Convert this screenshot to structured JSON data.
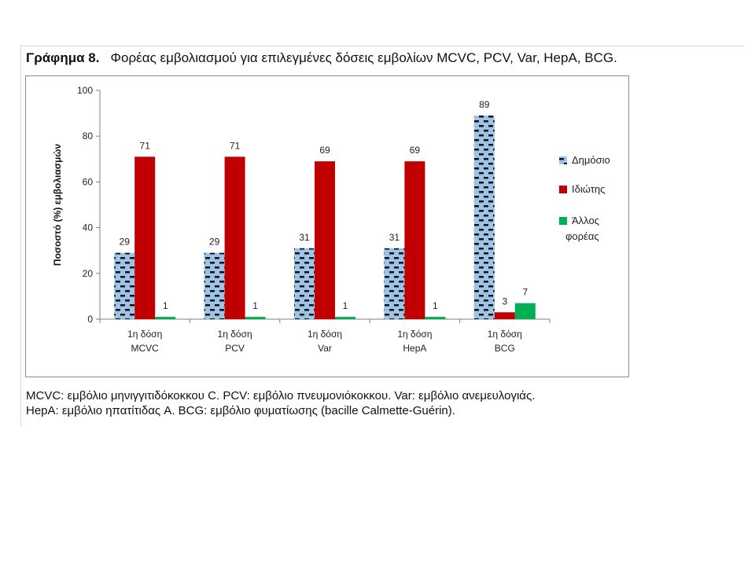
{
  "figure": {
    "label": "Γράφημα 8.",
    "title": "Φορέας εμβολιασμού για επιλεγμένες δόσεις εμβολίων MCVC, PCV, Var, HepA, BCG."
  },
  "caption": {
    "line1": "MCVC: εμβόλιο μηνιγγιτιδόκοκκου C. PCV: εμβόλιο πνευμονιόκοκκου. Var: εμβόλιο ανεμευλογιάς.",
    "line2": "HepA: εμβόλιο ηπατίτιδας A. BCG: εμβόλιο φυματίωσης (bacille Calmette-Guérin)."
  },
  "chart_data": {
    "type": "bar",
    "title": "",
    "xlabel": "",
    "ylabel": "Ποσοστό (%) εμβολιασμών",
    "ylim": [
      0,
      100
    ],
    "yticks": [
      0,
      20,
      40,
      60,
      80,
      100
    ],
    "grid": false,
    "legend_position": "right",
    "categories": [
      [
        "1η δόση",
        "MCVC"
      ],
      [
        "1η δόση",
        "PCV"
      ],
      [
        "1η δόση",
        "Var"
      ],
      [
        "1η δόση",
        "HepA"
      ],
      [
        "1η δόση",
        "BCG"
      ]
    ],
    "series": [
      {
        "name": "Δημόσιο",
        "values": [
          29,
          29,
          31,
          31,
          89
        ],
        "labels": [
          "29",
          "29",
          "31",
          "31",
          "89"
        ],
        "color": "#9dc3e6",
        "pattern": "dashed-blue"
      },
      {
        "name": "Ιδιώτης",
        "values": [
          71,
          71,
          69,
          69,
          3
        ],
        "labels": [
          "71",
          "71",
          "69",
          "69",
          "3"
        ],
        "color": "#c00000"
      },
      {
        "name": "Άλλος φορέας",
        "legend_lines": [
          "Άλλος",
          "φορέας"
        ],
        "values": [
          1,
          1,
          1,
          1,
          7
        ],
        "labels": [
          "1",
          "1",
          "1",
          "1",
          "7"
        ],
        "color": "#00b050"
      }
    ]
  }
}
